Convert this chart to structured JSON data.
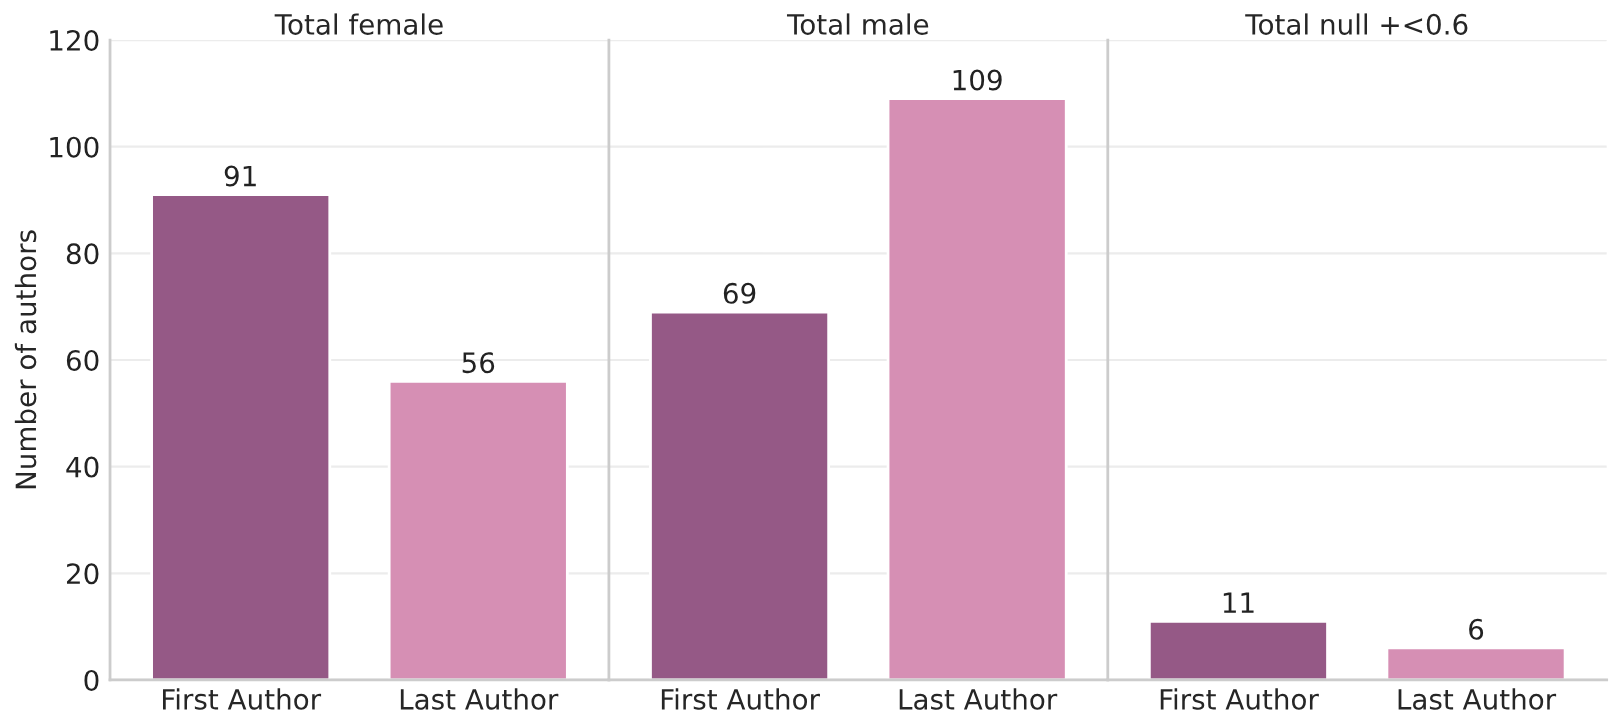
{
  "chart_data": [
    {
      "type": "bar",
      "title": "Total female",
      "ylabel": "Number of authors",
      "categories": [
        "First Author",
        "Last Author"
      ],
      "values": [
        91,
        56
      ],
      "colors": [
        "#955986",
        "#d68fb4"
      ],
      "data_labels": true,
      "ylim": [
        0,
        120
      ],
      "yticks": [
        0,
        20,
        40,
        60,
        80,
        100,
        120
      ],
      "grid": "y"
    },
    {
      "type": "bar",
      "title": "Total male",
      "categories": [
        "First Author",
        "Last Author"
      ],
      "values": [
        69,
        109
      ],
      "colors": [
        "#955986",
        "#d68fb4"
      ],
      "data_labels": true,
      "ylim": [
        0,
        120
      ],
      "yticks": [
        0,
        20,
        40,
        60,
        80,
        100,
        120
      ],
      "grid": "y",
      "tick_labels": "x"
    },
    {
      "type": "bar",
      "title": "Total null +<0.6",
      "categories": [
        "First Author",
        "Last Author"
      ],
      "values": [
        11,
        6
      ],
      "colors": [
        "#955986",
        "#d68fb4"
      ],
      "data_labels": true,
      "ylim": [
        0,
        120
      ],
      "yticks": [
        0,
        20,
        40,
        60,
        80,
        100,
        120
      ],
      "grid": "y",
      "tick_labels": "x"
    }
  ]
}
